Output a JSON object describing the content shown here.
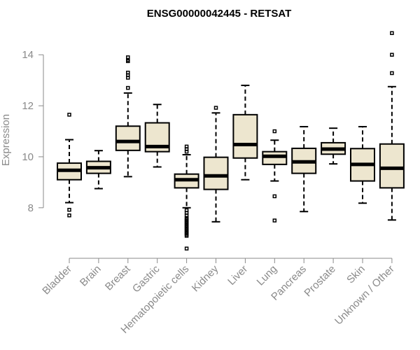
{
  "chart_data": {
    "type": "boxplot",
    "title": "ENSG00000042445 - RETSAT",
    "xlabel": "",
    "ylabel": "Expression",
    "ylim": [
      6.1,
      15.05
    ],
    "yticks": [
      8,
      10,
      12,
      14
    ],
    "box_color": "#ede6cf",
    "categories": [
      "Bladder",
      "Brain",
      "Breast",
      "Gastric",
      "Hematopoietic cells",
      "Kidney",
      "Liver",
      "Lung",
      "Pancreas",
      "Prostate",
      "Skin",
      "Unknown / Other"
    ],
    "boxes": [
      {
        "name": "Bladder",
        "whislo": 8.2,
        "q1": 9.1,
        "med": 9.47,
        "q3": 9.75,
        "whishi": 10.67,
        "fliers": [
          11.65,
          7.92,
          7.7
        ]
      },
      {
        "name": "Brain",
        "whislo": 8.75,
        "q1": 9.35,
        "med": 9.57,
        "q3": 9.82,
        "whishi": 10.24,
        "fliers": []
      },
      {
        "name": "Breast",
        "whislo": 9.22,
        "q1": 10.25,
        "med": 10.6,
        "q3": 11.2,
        "whishi": 12.5,
        "fliers": [
          13.9,
          13.8,
          13.75,
          13.3,
          13.2,
          13.1,
          12.7
        ]
      },
      {
        "name": "Gastric",
        "whislo": 9.6,
        "q1": 10.2,
        "med": 10.4,
        "q3": 11.33,
        "whishi": 12.05,
        "fliers": []
      },
      {
        "name": "Hematopoietic cells",
        "whislo": 8.0,
        "q1": 8.78,
        "med": 9.1,
        "q3": 9.32,
        "whishi": 10.08,
        "fliers": [
          10.4,
          10.3,
          10.2,
          7.9,
          7.8,
          7.7,
          7.6,
          7.55,
          7.5,
          7.45,
          7.4,
          7.35,
          7.3,
          7.25,
          7.2,
          7.15,
          7.1,
          7.05,
          7.0,
          6.95,
          6.9,
          6.4
        ]
      },
      {
        "name": "Kidney",
        "whislo": 7.45,
        "q1": 8.72,
        "med": 9.25,
        "q3": 9.98,
        "whishi": 11.72,
        "fliers": [
          11.92
        ]
      },
      {
        "name": "Liver",
        "whislo": 9.1,
        "q1": 9.95,
        "med": 10.48,
        "q3": 11.65,
        "whishi": 12.8,
        "fliers": []
      },
      {
        "name": "Lung",
        "whislo": 9.05,
        "q1": 9.7,
        "med": 10.02,
        "q3": 10.2,
        "whishi": 10.65,
        "fliers": [
          11.0,
          8.45,
          7.5
        ]
      },
      {
        "name": "Pancreas",
        "whislo": 7.85,
        "q1": 9.35,
        "med": 9.8,
        "q3": 10.33,
        "whishi": 11.18,
        "fliers": []
      },
      {
        "name": "Prostate",
        "whislo": 9.72,
        "q1": 10.1,
        "med": 10.3,
        "q3": 10.55,
        "whishi": 11.12,
        "fliers": []
      },
      {
        "name": "Skin",
        "whislo": 8.18,
        "q1": 9.05,
        "med": 9.7,
        "q3": 10.32,
        "whishi": 11.18,
        "fliers": []
      },
      {
        "name": "Unknown / Other",
        "whislo": 7.52,
        "q1": 8.78,
        "med": 9.55,
        "q3": 10.5,
        "whishi": 12.75,
        "fliers": [
          14.85,
          14.0,
          13.28
        ]
      }
    ]
  }
}
